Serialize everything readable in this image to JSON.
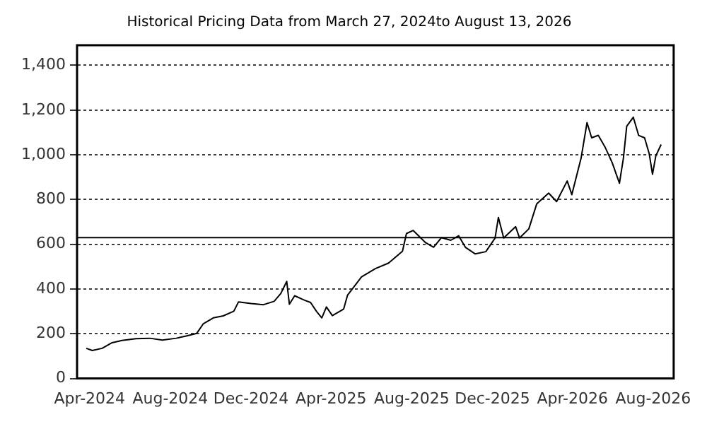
{
  "chart_data": {
    "type": "line",
    "title": "Historical Pricing Data from March 27, 2024to August 13, 2026",
    "xlim": [
      "2024-03-13",
      "2026-09-01"
    ],
    "xticks": [
      {
        "value": "2024-04-01",
        "label": "Apr-2024"
      },
      {
        "value": "2024-08-01",
        "label": "Aug-2024"
      },
      {
        "value": "2024-12-01",
        "label": "Dec-2024"
      },
      {
        "value": "2025-04-01",
        "label": "Apr-2025"
      },
      {
        "value": "2025-08-01",
        "label": "Aug-2025"
      },
      {
        "value": "2025-12-01",
        "label": "Dec-2025"
      },
      {
        "value": "2026-04-01",
        "label": "Apr-2026"
      },
      {
        "value": "2026-08-01",
        "label": "Aug-2026"
      }
    ],
    "ylim": [
      0,
      1490
    ],
    "yticks": [
      {
        "value": 0,
        "label": "0"
      },
      {
        "value": 200,
        "label": "200"
      },
      {
        "value": 400,
        "label": "400"
      },
      {
        "value": 600,
        "label": "600"
      },
      {
        "value": 800,
        "label": "800"
      },
      {
        "value": 1000,
        "label": "1,000"
      },
      {
        "value": 1200,
        "label": "1,200"
      },
      {
        "value": 1400,
        "label": "1,400"
      }
    ],
    "grid": "y",
    "legend": false,
    "marker": "none",
    "line_style": "solid",
    "ref_lines": [
      {
        "axis": "y",
        "value": 630,
        "color": "#000000"
      }
    ],
    "series": [
      {
        "color": "#000000",
        "x": [
          "2024-03-27",
          "2024-04-05",
          "2024-04-20",
          "2024-05-05",
          "2024-05-20",
          "2024-06-10",
          "2024-07-01",
          "2024-07-20",
          "2024-08-10",
          "2024-08-25",
          "2024-09-10",
          "2024-09-20",
          "2024-10-05",
          "2024-10-20",
          "2024-11-05",
          "2024-11-12",
          "2024-12-01",
          "2024-12-20",
          "2025-01-05",
          "2025-01-15",
          "2025-01-24",
          "2025-01-28",
          "2025-02-05",
          "2025-02-20",
          "2025-03-01",
          "2025-03-10",
          "2025-03-18",
          "2025-03-25",
          "2025-04-03",
          "2025-04-20",
          "2025-04-26",
          "2025-05-17",
          "2025-06-07",
          "2025-06-27",
          "2025-07-18",
          "2025-07-24",
          "2025-08-03",
          "2025-08-22",
          "2025-09-03",
          "2025-09-15",
          "2025-09-29",
          "2025-10-11",
          "2025-10-21",
          "2025-11-05",
          "2025-11-21",
          "2025-12-05",
          "2025-12-10",
          "2025-12-18",
          "2026-01-05",
          "2026-01-11",
          "2026-01-25",
          "2026-02-06",
          "2026-02-24",
          "2026-03-08",
          "2026-03-24",
          "2026-03-31",
          "2026-04-14",
          "2026-04-23",
          "2026-04-30",
          "2026-05-10",
          "2026-05-20",
          "2026-05-31",
          "2026-06-11",
          "2026-06-17",
          "2026-06-22",
          "2026-07-02",
          "2026-07-10",
          "2026-07-19",
          "2026-07-26",
          "2026-07-31",
          "2026-08-05",
          "2026-08-13"
        ],
        "values": [
          135,
          125,
          135,
          160,
          170,
          178,
          180,
          172,
          180,
          190,
          202,
          245,
          271,
          280,
          301,
          342,
          335,
          330,
          345,
          380,
          434,
          332,
          370,
          350,
          340,
          300,
          271,
          320,
          281,
          310,
          373,
          454,
          491,
          516,
          569,
          648,
          662,
          607,
          587,
          630,
          618,
          638,
          587,
          557,
          567,
          628,
          720,
          628,
          679,
          628,
          669,
          781,
          829,
          791,
          883,
          822,
          985,
          1144,
          1076,
          1087,
          1036,
          965,
          873,
          985,
          1128,
          1168,
          1087,
          1076,
          1005,
          913,
          995,
          1046
        ]
      }
    ]
  }
}
